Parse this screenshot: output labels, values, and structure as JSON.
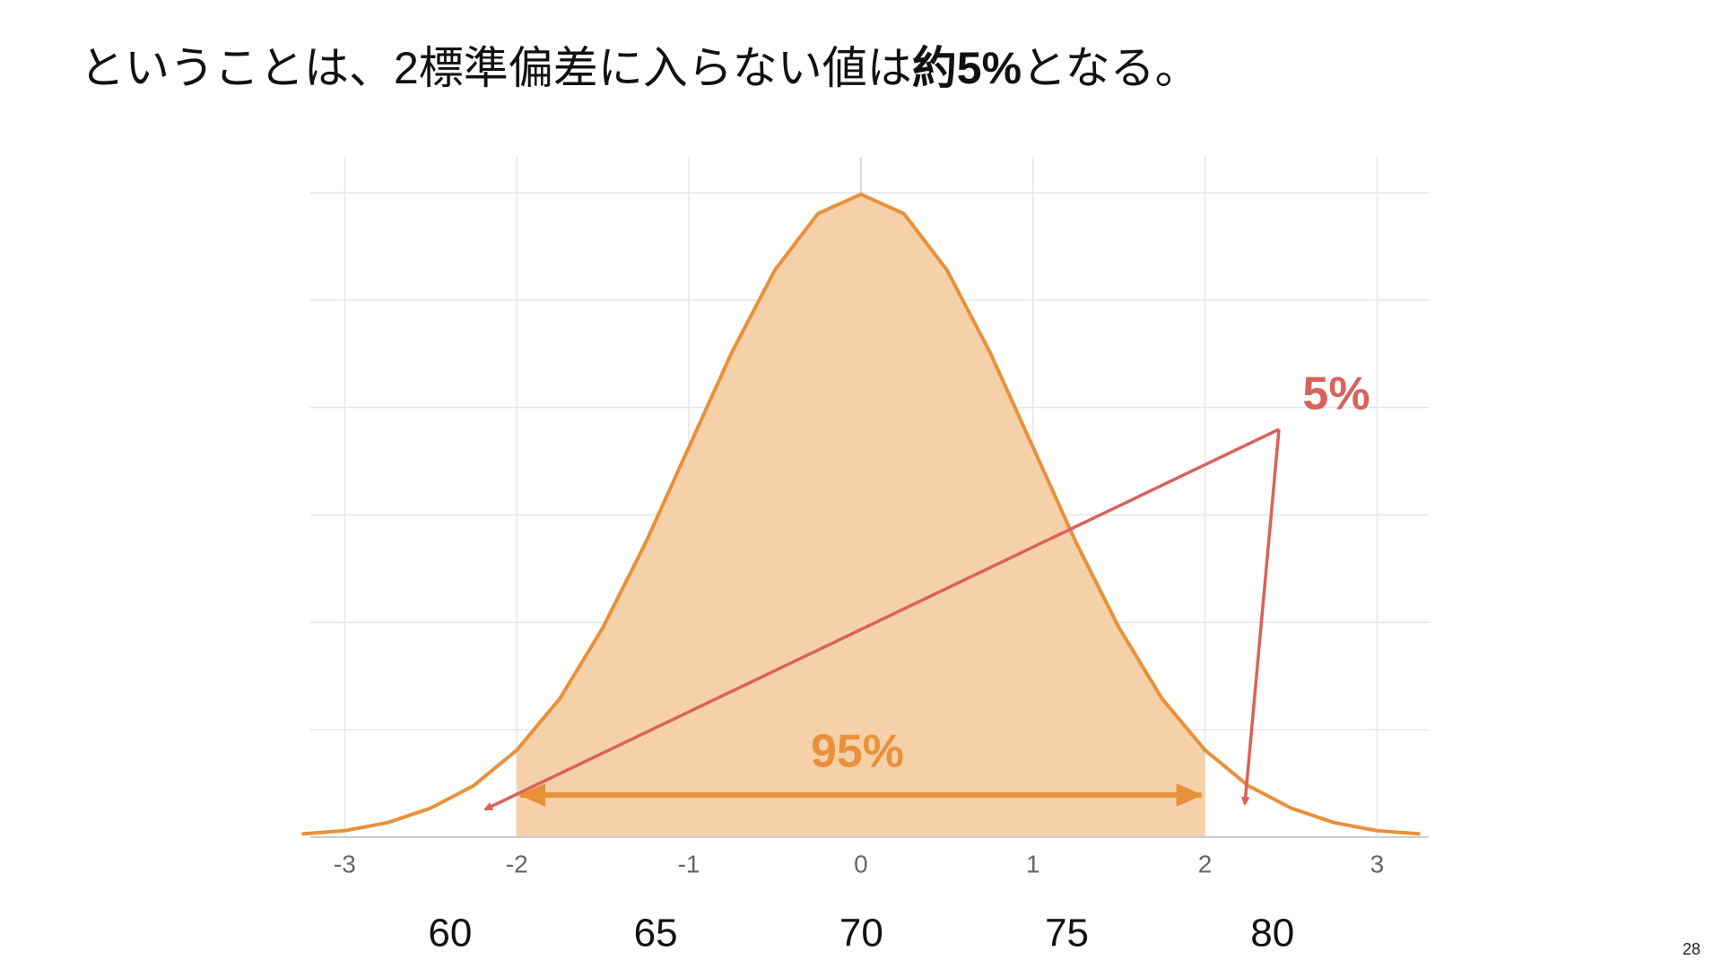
{
  "slide_title": [
    "ということは、2標準偏差に入らない値は",
    "約5%",
    "となる。"
  ],
  "page_number": "28",
  "chart_data": {
    "type": "area",
    "x": [
      -3.25,
      -3,
      -2.75,
      -2.5,
      -2.25,
      -2,
      -1.75,
      -1.5,
      -1.25,
      -1,
      -0.75,
      -0.5,
      -0.25,
      0,
      0.25,
      0.5,
      0.75,
      1,
      1.25,
      1.5,
      1.75,
      2,
      2.25,
      2.5,
      2.75,
      3,
      3.25
    ],
    "values": [
      0.002,
      0.004,
      0.009,
      0.018,
      0.032,
      0.054,
      0.086,
      0.13,
      0.183,
      0.242,
      0.301,
      0.352,
      0.387,
      0.399,
      0.387,
      0.352,
      0.301,
      0.242,
      0.183,
      0.13,
      0.086,
      0.054,
      0.032,
      0.018,
      0.009,
      0.004,
      0.002
    ],
    "color": "#e8913a",
    "fill_color": "#f5d0a9",
    "shade_range": [
      -2,
      2
    ],
    "xlim": [
      -3.2,
      3.3
    ],
    "xticks": [
      -3,
      -2,
      -1,
      0,
      1,
      2,
      3
    ],
    "x2lim": [
      56.6,
      83.8
    ],
    "x2ticks": [
      60,
      65,
      70,
      75,
      80
    ],
    "ylim": [
      0,
      0.4
    ],
    "grid": true,
    "annotations": [
      "95%",
      "5%"
    ],
    "annotation_colors": [
      "#e8913a",
      "#d9625a"
    ]
  }
}
